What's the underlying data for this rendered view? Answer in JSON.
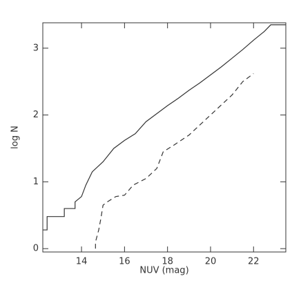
{
  "chart_data": {
    "type": "line",
    "x_label": "NUV (mag)",
    "y_label": "log N",
    "xlim": [
      12.2,
      23.5
    ],
    "ylim": [
      -0.05,
      3.38
    ],
    "xticks": [
      14,
      16,
      18,
      20,
      22
    ],
    "yticks": [
      0,
      1,
      2,
      3
    ],
    "series": [
      {
        "color": "#333333",
        "dash": "solid",
        "x": [
          12.2,
          12.4,
          12.4,
          13.2,
          13.2,
          13.7,
          13.7,
          14.0,
          14.2,
          14.5,
          15.0,
          15.5,
          16.0,
          16.5,
          17.0,
          17.5,
          18.0,
          18.5,
          19.0,
          19.5,
          20.0,
          20.5,
          21.0,
          21.5,
          22.0,
          22.5,
          22.8,
          23.5
        ],
        "values": [
          0.28,
          0.28,
          0.48,
          0.48,
          0.6,
          0.6,
          0.7,
          0.78,
          0.95,
          1.15,
          1.3,
          1.5,
          1.62,
          1.72,
          1.9,
          2.02,
          2.14,
          2.25,
          2.37,
          2.48,
          2.6,
          2.72,
          2.85,
          2.98,
          3.12,
          3.25,
          3.35,
          3.35
        ]
      },
      {
        "color": "#333333",
        "dash": "dashed",
        "x": [
          14.65,
          14.65,
          14.8,
          14.9,
          15.0,
          15.2,
          15.6,
          16.0,
          16.4,
          17.0,
          17.5,
          17.8,
          18.3,
          19.0,
          19.5,
          20.0,
          20.5,
          21.0,
          21.5,
          22.0
        ],
        "values": [
          0,
          0.1,
          0.28,
          0.45,
          0.65,
          0.7,
          0.78,
          0.8,
          0.95,
          1.05,
          1.2,
          1.45,
          1.55,
          1.7,
          1.85,
          2.0,
          2.15,
          2.3,
          2.5,
          2.62
        ]
      }
    ]
  }
}
